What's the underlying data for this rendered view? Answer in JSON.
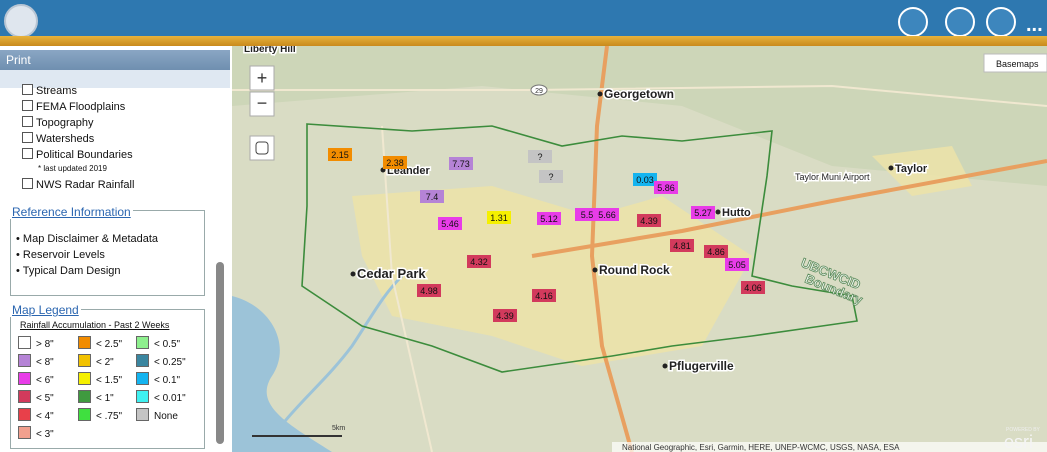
{
  "header": {
    "more": "..."
  },
  "sidebar": {
    "print_tab": "Print",
    "layers": [
      "Streams",
      "FEMA Floodplains",
      "Topography",
      "Watersheds",
      "Political Boundaries",
      "NWS Radar Rainfall"
    ],
    "layers_note": "* last updated 2019",
    "reference": {
      "title": "Reference Information",
      "items": [
        "Map Disclaimer & Metadata",
        "Reservoir Levels",
        "Typical Dam Design"
      ]
    },
    "legend": {
      "title": "Map Legend",
      "subtitle": "Rainfall Accumulation - Past 2 Weeks",
      "items": [
        {
          "label": "> 8\"",
          "color": "#ffffff"
        },
        {
          "label": "< 8\"",
          "color": "#b583d6"
        },
        {
          "label": "< 6\"",
          "color": "#e83ce8"
        },
        {
          "label": "< 5\"",
          "color": "#d23a5c"
        },
        {
          "label": "< 4\"",
          "color": "#e8404a"
        },
        {
          "label": "< 3\"",
          "color": "#f2a08e"
        },
        {
          "label": "< 2.5\"",
          "color": "#f28c00"
        },
        {
          "label": "< 2\"",
          "color": "#f2c200"
        },
        {
          "label": "< 1.5\"",
          "color": "#f5f000"
        },
        {
          "label": "< 1\"",
          "color": "#3f9a3f"
        },
        {
          "label": "< .75\"",
          "color": "#3fe03f"
        },
        {
          "label": "< 0.5\"",
          "color": "#8ef08e"
        },
        {
          "label": "< 0.25\"",
          "color": "#3a86a0"
        },
        {
          "label": "< 0.1\"",
          "color": "#14b4f0"
        },
        {
          "label": "< 0.01\"",
          "color": "#3ff0f0"
        },
        {
          "label": "None",
          "color": "#c4c4c4"
        }
      ]
    }
  },
  "map": {
    "zoom_in": "+",
    "zoom_out": "−",
    "basemaps": "Basemaps",
    "highway": "29",
    "places": [
      "Liberty Hill",
      "Georgetown",
      "Leander",
      "Cedar Park",
      "Round Rock",
      "Hutto",
      "Taylor",
      "Taylor Muni Airport",
      "Pflugerville"
    ],
    "boundary_label": [
      "UBCWCID",
      "Boundary"
    ],
    "scale": "5km",
    "attribution": "National Geographic, Esri, Garmin, HERE, UNEP-WCMC, USGS, NASA, ESA",
    "powered": "POWERED BY",
    "esri": "esri",
    "markers": [
      {
        "value": 2.15,
        "color": "#f28c00"
      },
      {
        "value": 2.38,
        "color": "#f28c00"
      },
      {
        "value": 7.73,
        "color": "#b583d6"
      },
      {
        "value": "?",
        "color": "#c4c4c4"
      },
      {
        "value": "?",
        "color": "#c4c4c4"
      },
      {
        "value": 7.4,
        "color": "#b583d6"
      },
      {
        "value": 0.03,
        "color": "#14b4f0"
      },
      {
        "value": 5.86,
        "color": "#e83ce8"
      },
      {
        "value": 1.31,
        "color": "#f5f000"
      },
      {
        "value": 5.46,
        "color": "#e83ce8"
      },
      {
        "value": 5.12,
        "color": "#e83ce8"
      },
      {
        "value": 5.5,
        "color": "#e83ce8"
      },
      {
        "value": 5.66,
        "color": "#e83ce8"
      },
      {
        "value": 4.39,
        "color": "#d23a5c"
      },
      {
        "value": 5.27,
        "color": "#e83ce8"
      },
      {
        "value": 4.81,
        "color": "#d23a5c"
      },
      {
        "value": 4.86,
        "color": "#d23a5c"
      },
      {
        "value": 5.05,
        "color": "#e83ce8"
      },
      {
        "value": 4.32,
        "color": "#d23a5c"
      },
      {
        "value": 4.98,
        "color": "#d23a5c"
      },
      {
        "value": 4.16,
        "color": "#d23a5c"
      },
      {
        "value": 4.39,
        "color": "#d23a5c"
      },
      {
        "value": 4.06,
        "color": "#d23a5c"
      }
    ]
  }
}
